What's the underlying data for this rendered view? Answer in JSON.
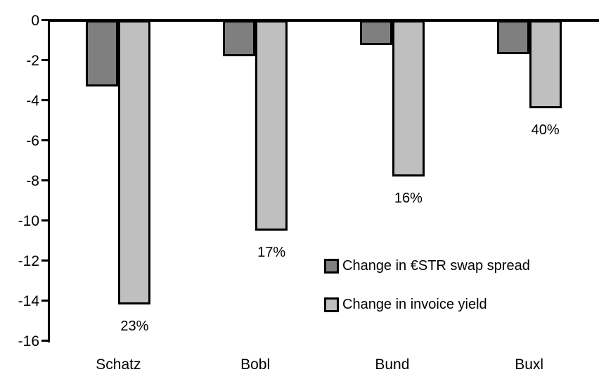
{
  "chart_data": {
    "type": "bar",
    "title": "",
    "xlabel": "",
    "ylabel": "",
    "categories": [
      "Schatz",
      "Bobl",
      "Bund",
      "Buxl"
    ],
    "series": [
      {
        "name": "Change in €STR swap spread",
        "color": "#7F7F7F",
        "values": [
          -3.3,
          -1.8,
          -1.25,
          -1.7
        ]
      },
      {
        "name": "Change in invoice yield",
        "color": "#BFBFBF",
        "values": [
          -14.2,
          -10.5,
          -7.8,
          -4.4
        ],
        "bar_labels": [
          "23%",
          "17%",
          "16%",
          "40%"
        ]
      }
    ],
    "ylim": [
      -16,
      0
    ],
    "yticks": [
      0,
      -2,
      -4,
      -6,
      -8,
      -10,
      -12,
      -14,
      -16
    ],
    "grid": false,
    "bar_outline": "#000000",
    "legend_position": "center-right"
  }
}
